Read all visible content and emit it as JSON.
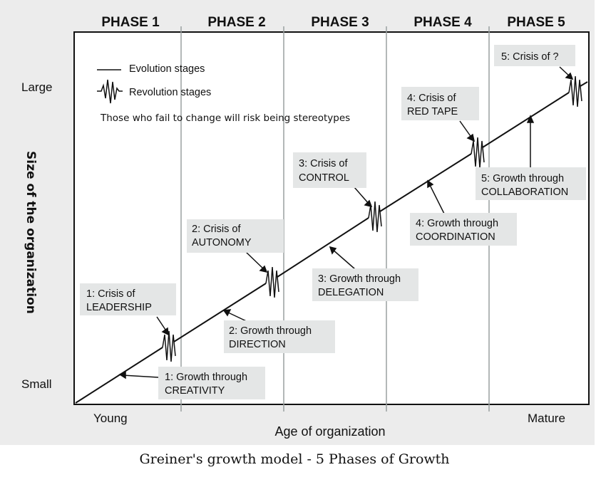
{
  "phases": [
    "PHASE 1",
    "PHASE 2",
    "PHASE 3",
    "PHASE 4",
    "PHASE 5"
  ],
  "y_axis": {
    "label": "Size of the organization",
    "top": "Large",
    "bottom": "Small"
  },
  "x_axis": {
    "label": "Age of organization",
    "left": "Young",
    "right": "Mature"
  },
  "legend": {
    "evolution": "Evolution stages",
    "revolution": "Revolution stages",
    "note": "Those who fail to change will risk being stereotypes"
  },
  "crises": [
    {
      "line1": "1: Crisis of",
      "line2": "LEADERSHIP"
    },
    {
      "line1": "2: Crisis of",
      "line2": "AUTONOMY"
    },
    {
      "line1": "3: Crisis of",
      "line2": "CONTROL"
    },
    {
      "line1": "4: Crisis of",
      "line2": "RED TAPE"
    },
    {
      "line1": "5: Crisis of ?",
      "line2": ""
    }
  ],
  "growths": [
    {
      "line1": "1: Growth through",
      "line2": "CREATIVITY"
    },
    {
      "line1": "2: Growth through",
      "line2": "DIRECTION"
    },
    {
      "line1": "3: Growth through",
      "line2": "DELEGATION"
    },
    {
      "line1": "4: Growth through",
      "line2": "COORDINATION"
    },
    {
      "line1": "5: Growth through",
      "line2": "COLLABORATION"
    }
  ],
  "caption": "Greiner's growth model - 5 Phases of Growth"
}
